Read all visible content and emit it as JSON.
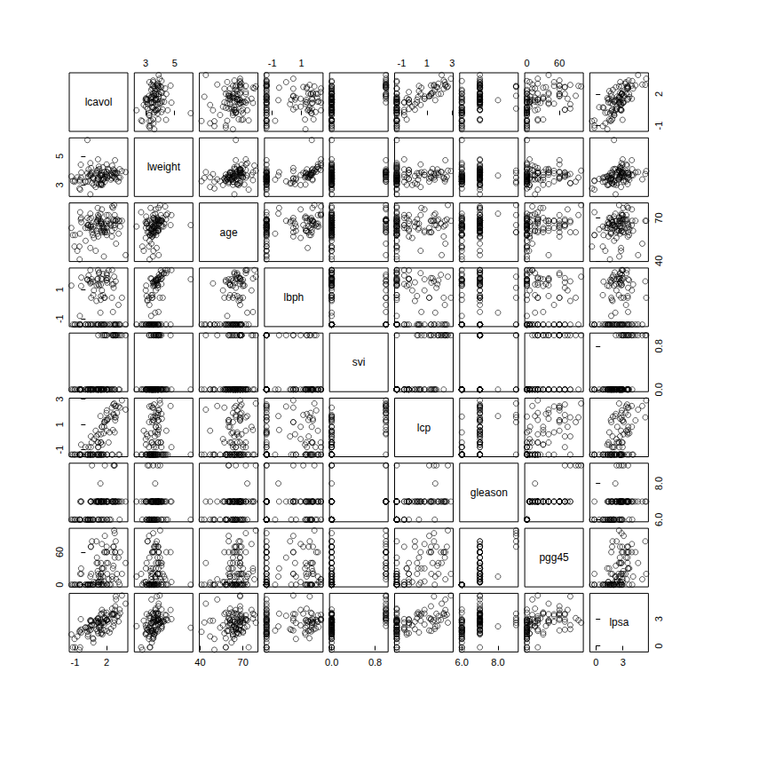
{
  "chart_data": {
    "type": "scatter_matrix",
    "marker": "circle",
    "tick_labels": true,
    "variables": [
      {
        "name": "lcavol",
        "lim": [
          -1.55,
          4.03
        ],
        "ticks": [
          -1,
          2
        ],
        "values": [
          -0.58,
          -0.99,
          -0.51,
          -1.2,
          0.75,
          -1.05,
          0.74,
          0.69,
          -0.78,
          0.22,
          0.25,
          -1.35,
          1.61,
          1.48,
          1.21,
          1.54,
          -0.42,
          2.29,
          -0.56,
          0.18,
          1.15,
          2.06,
          -0.54,
          1.78,
          0.39,
          1.45,
          0.51,
          -0.4,
          1.04,
          2.41,
          0.29,
          0.18,
          1.28,
          0.01,
          -0.01,
          1.31,
          1.42,
          0.46,
          2.66,
          0.8,
          0.62,
          1.44,
          0.58,
          1.77,
          1.49,
          1.66,
          2.73,
          1.16,
          1.75,
          1.22,
          1.09,
          1.66,
          0.51,
          2.13,
          3.15,
          1.27,
          0.97,
          0.46,
          0.54,
          1.06,
          0.46,
          2,
          2.78,
          2.03,
          2.07,
          1.46,
          2.02,
          2.2,
          -0.45,
          1.19,
          1.86,
          1.16,
          1.21,
          1.84,
          3,
          3.14,
          2.01,
          2.54,
          2.65,
          2.78,
          1.47,
          2.51,
          2.61,
          2.68,
          1.56,
          3.3,
          2.02,
          1.73,
          2.81,
          1.56,
          3.25,
          2.53,
          2.83,
          3.82,
          2.91,
          2.88,
          3.47
        ]
      },
      {
        "name": "lweight",
        "lim": [
          2.22,
          6.26
        ],
        "ticks": [
          3,
          5
        ],
        "values": [
          2.77,
          3.32,
          2.69,
          3.28,
          3.43,
          3.23,
          3.47,
          3.54,
          3.54,
          3.24,
          3.6,
          3.6,
          3.02,
          3,
          3.44,
          3.06,
          3.52,
          3.65,
          3.27,
          3.83,
          3.42,
          3.5,
          3.38,
          3.45,
          3.67,
          3.12,
          3.72,
          3.87,
          3.13,
          3.38,
          4.09,
          6.11,
          3.04,
          3.27,
          3.22,
          4.12,
          3.66,
          2.37,
          4.09,
          3.01,
          3.14,
          3.68,
          3.87,
          3.9,
          3.41,
          3.39,
          4,
          4.04,
          3.5,
          3.57,
          3.99,
          4.23,
          3.63,
          4.12,
          3.52,
          4.28,
          2.87,
          3.76,
          4.18,
          3.85,
          4.52,
          3.72,
          3.52,
          3.92,
          3.62,
          3.84,
          3.88,
          4.05,
          4.41,
          4.78,
          3.59,
          3.34,
          3.83,
          3.24,
          3.85,
          3.26,
          4.43,
          4.35,
          3.58,
          3.82,
          3.07,
          3.47,
          3.89,
          3.84,
          3.71,
          3.52,
          3.73,
          3.37,
          4.72,
          3.7,
          4.1,
          3.68,
          3.88,
          3.9,
          3.4,
          3.77,
          3.97
        ]
      },
      {
        "name": "age",
        "lim": [
          39.5,
          80.5
        ],
        "ticks": [
          40,
          70
        ],
        "values": [
          50,
          58,
          74,
          58,
          62,
          50,
          64,
          58,
          47,
          63,
          65,
          63,
          63,
          67,
          57,
          66,
          70,
          66,
          41,
          70,
          59,
          60,
          59,
          63,
          69,
          68,
          65,
          67,
          67,
          65,
          65,
          65,
          71,
          54,
          63,
          64,
          73,
          64,
          68,
          56,
          60,
          68,
          62,
          61,
          66,
          61,
          79,
          68,
          43,
          70,
          68,
          64,
          64,
          68,
          59,
          66,
          47,
          49,
          70,
          61,
          73,
          63,
          72,
          66,
          64,
          61,
          68,
          72,
          69,
          72,
          60,
          77,
          69,
          60,
          69,
          68,
          72,
          78,
          69,
          63,
          66,
          57,
          77,
          65,
          60,
          64,
          58,
          62,
          65,
          76,
          68,
          61,
          68,
          44,
          52,
          68,
          68
        ]
      },
      {
        "name": "lbph",
        "lim": [
          -1.53,
          2.47
        ],
        "ticks": [
          -1,
          1
        ],
        "values": [
          -1.39,
          -1.39,
          -1.39,
          -1.39,
          -1.39,
          -1.39,
          0.62,
          1.54,
          -1.39,
          -1.39,
          -1.39,
          1.27,
          -1.39,
          -1.39,
          -1.39,
          -1.39,
          1.24,
          -1.39,
          -1.39,
          1.66,
          -1.39,
          1.47,
          -0.8,
          0.44,
          1.6,
          0.3,
          -1.39,
          1.82,
          0.22,
          -1.39,
          1.96,
          1.7,
          1.27,
          -1.39,
          -1.39,
          2.17,
          -0.58,
          -1.39,
          1.37,
          0.94,
          -1.39,
          -1.39,
          1.71,
          -1.39,
          1.75,
          0.62,
          1.88,
          1.71,
          -1.39,
          1.37,
          -1.39,
          2.07,
          1.49,
          1.77,
          -1.39,
          2.12,
          -1.39,
          1.42,
          0.44,
          1.29,
          2.33,
          1.62,
          -1.39,
          2.01,
          -1.39,
          1.32,
          1.78,
          2.31,
          -1.39,
          2.33,
          -1.39,
          1.75,
          -1.39,
          0.44,
          -1.39,
          -0.05,
          2.12,
          2.33,
          -1.39,
          -1.39,
          0.56,
          0.44,
          -0.53,
          1.12,
          1.7,
          -1.39,
          1.64,
          -1.39,
          -1.39,
          0.94,
          -1.39,
          1.35,
          -1.39,
          -1.39,
          -1.39,
          1.56,
          0.44
        ]
      },
      {
        "name": "svi",
        "lim": [
          -0.04,
          1.04
        ],
        "ticks": [
          {
            "value": 0,
            "label": "0.0"
          },
          0.8
        ],
        "values": [
          0,
          0,
          0,
          0,
          0,
          0,
          0,
          0,
          0,
          0,
          0,
          0,
          0,
          0,
          0,
          0,
          0,
          0,
          0,
          0,
          0,
          0,
          0,
          0,
          0,
          0,
          0,
          0,
          0,
          0,
          0,
          0,
          0,
          0,
          0,
          0,
          0,
          0,
          1,
          0,
          0,
          0,
          0,
          0,
          0,
          0,
          1,
          0,
          0,
          0,
          0,
          0,
          0,
          0,
          0,
          0,
          0,
          0,
          0,
          0,
          0,
          1,
          0,
          1,
          0,
          0,
          0,
          0,
          0,
          0,
          1,
          0,
          1,
          1,
          1,
          1,
          0,
          0,
          1,
          0,
          0,
          0,
          1,
          0,
          0,
          1,
          0,
          1,
          1,
          1,
          0,
          1,
          1,
          1,
          1,
          1,
          1
        ]
      },
      {
        "name": "lcp",
        "lim": [
          -1.56,
          3.08
        ],
        "ticks": [
          -1,
          1,
          3
        ],
        "values": [
          -1.39,
          -1.39,
          -1.39,
          -1.39,
          -1.39,
          -1.39,
          -1.39,
          -1.39,
          -1.39,
          -1.39,
          -1.39,
          -1.39,
          -0.6,
          -1.39,
          -0.43,
          -1.39,
          -0.6,
          0.37,
          -1.39,
          -1.39,
          -1.39,
          1.35,
          -1.39,
          1.18,
          -1.39,
          -1.39,
          -0.8,
          -1.39,
          0.05,
          1.62,
          -0.8,
          -1.39,
          -1.39,
          -1.39,
          -0.8,
          -1.39,
          1.66,
          -1.39,
          1.83,
          -0.16,
          -1.39,
          -1.39,
          -0.43,
          0.81,
          -0.43,
          -1.39,
          2.66,
          -0.43,
          -1.39,
          -0.8,
          -1.39,
          -1.39,
          0.05,
          1.45,
          -1.39,
          -1.39,
          0.5,
          -1.39,
          -1.39,
          -1.39,
          -1.39,
          1.91,
          1.56,
          2.11,
          -1.39,
          -0.43,
          1.32,
          -0.43,
          -1.39,
          -0.8,
          1.32,
          -1.39,
          0.22,
          1.18,
          1.91,
          2.42,
          0.5,
          -1.39,
          2.58,
          0.37,
          0.22,
          2.33,
          0.56,
          1.75,
          0.81,
          2.33,
          -1.39,
          0.3,
          2.46,
          0.81,
          -1.39,
          -1.39,
          1.32,
          2.17,
          2.46,
          1.56,
          2.9
        ]
      },
      {
        "name": "gleason",
        "lim": [
          5.88,
          9.12
        ],
        "ticks": [
          {
            "value": 6,
            "label": "6.0"
          },
          {
            "value": 8,
            "label": "8.0"
          }
        ],
        "values": [
          6,
          6,
          7,
          6,
          6,
          6,
          6,
          6,
          6,
          6,
          6,
          6,
          7,
          7,
          7,
          6,
          7,
          6,
          6,
          6,
          6,
          7,
          6,
          7,
          6,
          6,
          7,
          7,
          7,
          6,
          6,
          6,
          6,
          6,
          6,
          7,
          8,
          7,
          7,
          7,
          9,
          7,
          6,
          7,
          7,
          7,
          9,
          7,
          6,
          6,
          7,
          6,
          7,
          7,
          7,
          7,
          7,
          6,
          7,
          7,
          6,
          7,
          9,
          7,
          6,
          7,
          7,
          7,
          6,
          7,
          7,
          7,
          7,
          9,
          7,
          7,
          7,
          7,
          7,
          7,
          7,
          7,
          7,
          9,
          7,
          7,
          6,
          7,
          7,
          7,
          6,
          7,
          7,
          7,
          7,
          7,
          7
        ]
      },
      {
        "name": "pgg45",
        "lim": [
          -4,
          104
        ],
        "ticks": [
          0,
          60
        ],
        "values": [
          0,
          0,
          20,
          0,
          0,
          0,
          0,
          0,
          0,
          0,
          0,
          0,
          30,
          5,
          5,
          0,
          30,
          0,
          0,
          0,
          0,
          20,
          0,
          60,
          0,
          0,
          70,
          20,
          80,
          0,
          0,
          0,
          0,
          0,
          0,
          5,
          15,
          15,
          35,
          5,
          80,
          10,
          0,
          6,
          20,
          15,
          100,
          40,
          0,
          0,
          50,
          0,
          70,
          40,
          5,
          15,
          4,
          0,
          20,
          40,
          0,
          40,
          95,
          60,
          0,
          20,
          70,
          10,
          0,
          5,
          60,
          25,
          20,
          90,
          20,
          50,
          60,
          10,
          70,
          50,
          40,
          60,
          30,
          70,
          30,
          60,
          0,
          30,
          60,
          75,
          0,
          15,
          60,
          40,
          10,
          80,
          20
        ]
      },
      {
        "name": "lpsa",
        "lim": [
          -0.67,
          5.82
        ],
        "ticks": [
          0,
          3
        ],
        "values": [
          -0.43,
          -0.16,
          -0.16,
          -0.16,
          0.37,
          0.77,
          0.77,
          0.85,
          1.05,
          1.05,
          1.27,
          1.27,
          1.27,
          1.35,
          1.4,
          1.45,
          1.47,
          1.49,
          1.56,
          1.6,
          1.64,
          1.66,
          1.7,
          1.71,
          1.73,
          1.77,
          1.8,
          1.82,
          1.85,
          1.89,
          1.92,
          2.01,
          2.01,
          2.02,
          2.05,
          2.09,
          2.16,
          2.19,
          2.21,
          2.28,
          2.3,
          2.31,
          2.33,
          2.37,
          2.52,
          2.55,
          2.57,
          2.57,
          2.59,
          2.59,
          2.66,
          2.68,
          2.68,
          2.69,
          2.7,
          2.72,
          2.79,
          2.79,
          2.81,
          2.81,
          2.84,
          2.85,
          2.85,
          2.88,
          2.88,
          2.89,
          2.92,
          2.96,
          2.96,
          2.97,
          3.01,
          3.04,
          3.06,
          3.08,
          3.28,
          3.34,
          3.39,
          3.44,
          3.46,
          3.51,
          3.52,
          3.53,
          3.57,
          3.57,
          3.59,
          3.63,
          3.68,
          3.71,
          3.98,
          3.99,
          4.03,
          4.13,
          4.39,
          4.68,
          5.14,
          5.48,
          5.58
        ]
      }
    ]
  }
}
